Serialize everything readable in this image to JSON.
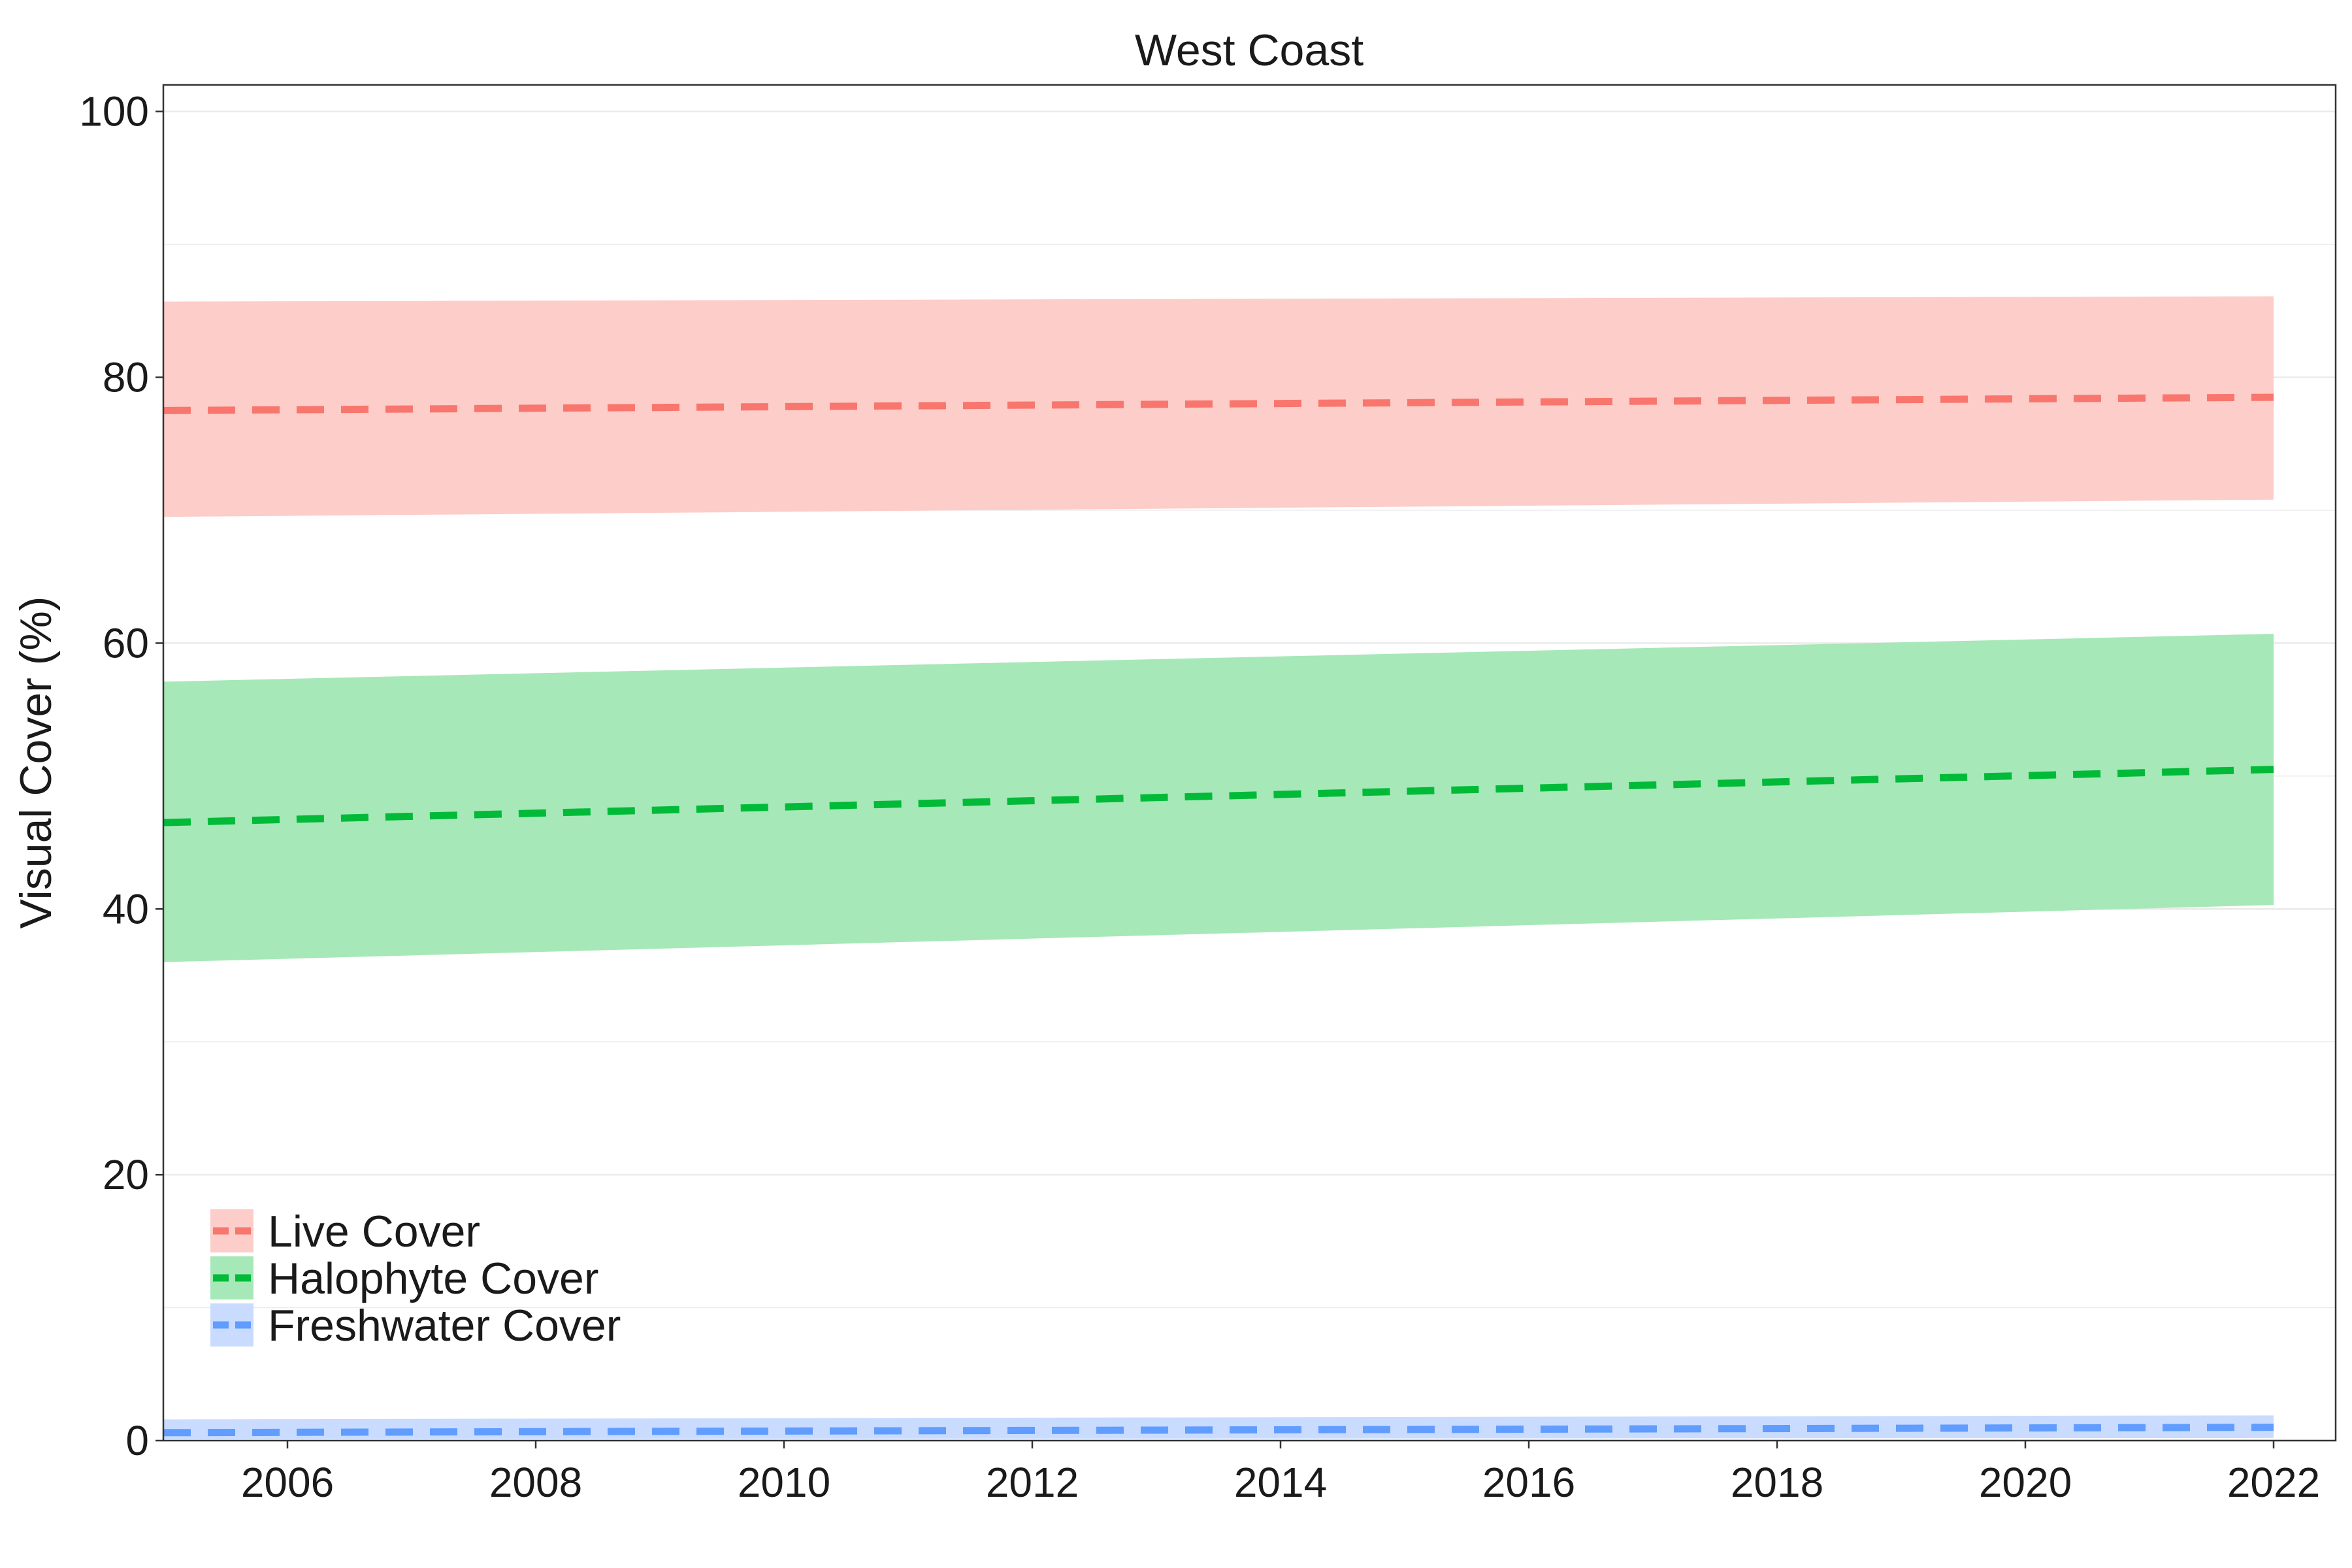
{
  "chart_data": {
    "type": "line",
    "title": "West Coast",
    "xlabel": "",
    "ylabel": "Visual Cover (%)",
    "xlim": [
      2005,
      2022.5
    ],
    "ylim": [
      0,
      102
    ],
    "x_ticks": [
      2006,
      2008,
      2010,
      2012,
      2014,
      2016,
      2018,
      2020,
      2022
    ],
    "y_ticks": [
      0,
      20,
      40,
      60,
      80,
      100
    ],
    "grid": true,
    "legend_position": "bottom-left",
    "x": [
      2005,
      2022
    ],
    "series": [
      {
        "name": "Live Cover",
        "color": "#F8766D",
        "fill": "#FCCDC9",
        "values": [
          77.5,
          78.5
        ],
        "lower": [
          69.5,
          70.8
        ],
        "upper": [
          85.7,
          86.1
        ]
      },
      {
        "name": "Halophyte Cover",
        "color": "#00BA38",
        "fill": "#A6E8B8",
        "values": [
          46.5,
          50.5
        ],
        "lower": [
          36.0,
          40.3
        ],
        "upper": [
          57.1,
          60.7
        ]
      },
      {
        "name": "Freshwater Cover",
        "color": "#619CFF",
        "fill": "#C9DCFF",
        "values": [
          0.6,
          1.0
        ],
        "lower": [
          0.1,
          0.2
        ],
        "upper": [
          1.6,
          1.9
        ]
      }
    ]
  }
}
